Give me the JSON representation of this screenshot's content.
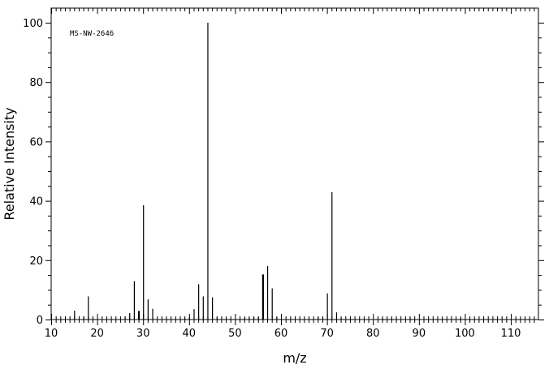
{
  "chart_data": {
    "type": "bar",
    "title": "",
    "annotation": "MS-NW-2646",
    "xlabel": "m/z",
    "ylabel": "Relative Intensity",
    "xlim": [
      10,
      116
    ],
    "ylim": [
      0,
      100
    ],
    "x_ticks": [
      10,
      20,
      30,
      40,
      50,
      60,
      70,
      80,
      90,
      100,
      110
    ],
    "y_ticks": [
      0,
      20,
      40,
      60,
      80,
      100
    ],
    "grid": false,
    "peaks": [
      {
        "mz": 15,
        "intensity": 3.0
      },
      {
        "mz": 17,
        "intensity": 1.0
      },
      {
        "mz": 18,
        "intensity": 7.8
      },
      {
        "mz": 26,
        "intensity": 1.0
      },
      {
        "mz": 27,
        "intensity": 2.2
      },
      {
        "mz": 28,
        "intensity": 12.9
      },
      {
        "mz": 29,
        "intensity": 2.9
      },
      {
        "mz": 30,
        "intensity": 38.5
      },
      {
        "mz": 31,
        "intensity": 6.8
      },
      {
        "mz": 32,
        "intensity": 3.6
      },
      {
        "mz": 39,
        "intensity": 0.6
      },
      {
        "mz": 40,
        "intensity": 0.8
      },
      {
        "mz": 41,
        "intensity": 3.5
      },
      {
        "mz": 42,
        "intensity": 11.9
      },
      {
        "mz": 43,
        "intensity": 7.8
      },
      {
        "mz": 44,
        "intensity": 100.0
      },
      {
        "mz": 45,
        "intensity": 7.5
      },
      {
        "mz": 46,
        "intensity": 0.6
      },
      {
        "mz": 52,
        "intensity": 0.5
      },
      {
        "mz": 53,
        "intensity": 0.6
      },
      {
        "mz": 54,
        "intensity": 0.8
      },
      {
        "mz": 55,
        "intensity": 0.9
      },
      {
        "mz": 56,
        "intensity": 15.2
      },
      {
        "mz": 57,
        "intensity": 18.0
      },
      {
        "mz": 58,
        "intensity": 10.5
      },
      {
        "mz": 59,
        "intensity": 0.8
      },
      {
        "mz": 68,
        "intensity": 0.8
      },
      {
        "mz": 69,
        "intensity": 0.7
      },
      {
        "mz": 70,
        "intensity": 8.8
      },
      {
        "mz": 71,
        "intensity": 42.9
      },
      {
        "mz": 72,
        "intensity": 2.4
      },
      {
        "mz": 73,
        "intensity": 0.5
      },
      {
        "mz": 82,
        "intensity": 0.4
      },
      {
        "mz": 84,
        "intensity": 0.5
      },
      {
        "mz": 88,
        "intensity": 0.6
      },
      {
        "mz": 99,
        "intensity": 0.5
      }
    ]
  }
}
